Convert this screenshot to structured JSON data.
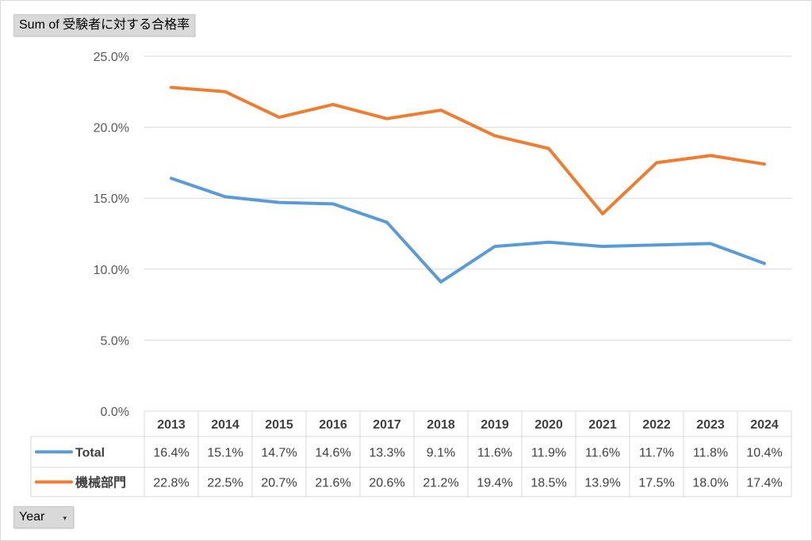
{
  "value_field": {
    "label": "Sum of 受験者に対する合格率"
  },
  "axis_field": {
    "label": "Year",
    "dropdown_glyph": "▾"
  },
  "colors": {
    "total": "#5b9bd5",
    "kikai": "#ed7d31",
    "grid": "#d9d9d9"
  },
  "chart_data": {
    "type": "line",
    "categories": [
      "2013",
      "2014",
      "2015",
      "2016",
      "2017",
      "2018",
      "2019",
      "2020",
      "2021",
      "2022",
      "2023",
      "2024"
    ],
    "ylim": [
      0,
      25
    ],
    "yticks": [
      "0.0%",
      "5.0%",
      "10.0%",
      "15.0%",
      "20.0%",
      "25.0%"
    ],
    "grid": true,
    "legend": "data-table",
    "series": [
      {
        "name": "Total",
        "values": [
          16.4,
          15.1,
          14.7,
          14.6,
          13.3,
          9.1,
          11.6,
          11.9,
          11.6,
          11.7,
          11.8,
          10.4
        ],
        "labels": [
          "16.4%",
          "15.1%",
          "14.7%",
          "14.6%",
          "13.3%",
          "9.1%",
          "11.6%",
          "11.9%",
          "11.6%",
          "11.7%",
          "11.8%",
          "10.4%"
        ]
      },
      {
        "name": "機械部門",
        "values": [
          22.8,
          22.5,
          20.7,
          21.6,
          20.6,
          21.2,
          19.4,
          18.5,
          13.9,
          17.5,
          18.0,
          17.4
        ],
        "labels": [
          "22.8%",
          "22.5%",
          "20.7%",
          "21.6%",
          "20.6%",
          "21.2%",
          "19.4%",
          "18.5%",
          "13.9%",
          "17.5%",
          "18.0%",
          "17.4%"
        ]
      }
    ]
  }
}
